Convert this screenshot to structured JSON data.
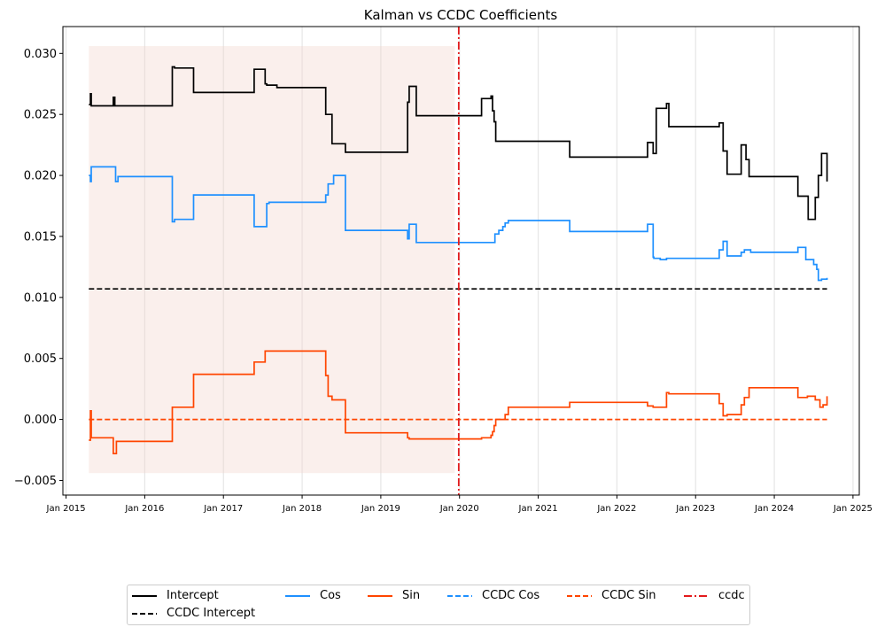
{
  "chart_data": {
    "type": "line",
    "title": "Kalman vs CCDC Coefficients",
    "xlabel": "",
    "ylabel": "",
    "xlim": [
      2014.96,
      2025.08
    ],
    "ylim": [
      -0.0062,
      0.0322
    ],
    "y_ticks": [
      -0.005,
      0.0,
      0.005,
      0.01,
      0.015,
      0.02,
      0.025,
      0.03
    ],
    "y_tick_labels": [
      "−0.005",
      "0.000",
      "0.005",
      "0.010",
      "0.015",
      "0.020",
      "0.025",
      "0.030"
    ],
    "x_ticks": [
      2015,
      2016,
      2017,
      2018,
      2019,
      2020,
      2021,
      2022,
      2023,
      2024,
      2025
    ],
    "x_tick_labels": [
      "Jan 2015",
      "Jan 2016",
      "Jan 2017",
      "Jan 2018",
      "Jan 2019",
      "Jan 2020",
      "Jan 2021",
      "Jan 2022",
      "Jan 2023",
      "Jan 2024",
      "Jan 2025"
    ],
    "grid": "vertical",
    "shaded_region": {
      "x": [
        2015.29,
        2019.94
      ],
      "y": [
        -0.0044,
        0.0306
      ],
      "color": "#f2d0c8"
    },
    "vline": {
      "name": "ccdc",
      "x": 2019.99,
      "color": "#e31a1c",
      "style": "dashdot"
    },
    "series": [
      {
        "name": "Intercept",
        "color": "#000000",
        "style": "solid",
        "step": true,
        "x": [
          2015.29,
          2015.31,
          2015.32,
          2015.33,
          2015.6,
          2015.62,
          2015.64,
          2016.35,
          2016.38,
          2016.62,
          2017.39,
          2017.53,
          2017.55,
          2017.68,
          2018.3,
          2018.38,
          2018.55,
          2019.34,
          2019.36,
          2019.45,
          2020.28,
          2020.4,
          2020.42,
          2020.44,
          2020.46,
          2021.4,
          2022.39,
          2022.46,
          2022.5,
          2022.63,
          2022.66,
          2023.3,
          2023.35,
          2023.4,
          2023.58,
          2023.64,
          2023.68,
          2024.3,
          2024.43,
          2024.52,
          2024.56,
          2024.6,
          2024.67
        ],
        "y": [
          0.0258,
          0.0267,
          0.0257,
          0.0257,
          0.0264,
          0.0257,
          0.0257,
          0.0289,
          0.0288,
          0.0268,
          0.0287,
          0.0275,
          0.0274,
          0.0272,
          0.025,
          0.0226,
          0.0219,
          0.026,
          0.0273,
          0.0249,
          0.0263,
          0.0265,
          0.0253,
          0.0244,
          0.0228,
          0.0215,
          0.0227,
          0.0218,
          0.0255,
          0.0259,
          0.024,
          0.0243,
          0.022,
          0.0201,
          0.0225,
          0.0213,
          0.0199,
          0.0183,
          0.0164,
          0.0182,
          0.02,
          0.0218,
          0.0195
        ]
      },
      {
        "name": "Cos",
        "color": "#1e90ff",
        "style": "solid",
        "step": true,
        "x": [
          2015.29,
          2015.31,
          2015.32,
          2015.35,
          2015.63,
          2015.66,
          2016.35,
          2016.38,
          2016.45,
          2016.62,
          2017.39,
          2017.55,
          2017.58,
          2018.3,
          2018.33,
          2018.4,
          2018.55,
          2019.34,
          2019.36,
          2019.45,
          2020.32,
          2020.4,
          2020.45,
          2020.5,
          2020.55,
          2020.58,
          2020.62,
          2021.4,
          2022.39,
          2022.46,
          2022.47,
          2022.55,
          2022.63,
          2023.3,
          2023.35,
          2023.4,
          2023.45,
          2023.58,
          2023.62,
          2023.7,
          2024.3,
          2024.4,
          2024.5,
          2024.54,
          2024.56,
          2024.6,
          2024.67
        ],
        "y": [
          0.02,
          0.0195,
          0.0207,
          0.0207,
          0.0195,
          0.0199,
          0.0162,
          0.0164,
          0.0164,
          0.0184,
          0.0158,
          0.0177,
          0.0178,
          0.0184,
          0.0193,
          0.02,
          0.0155,
          0.0148,
          0.016,
          0.0145,
          0.0145,
          0.0145,
          0.0152,
          0.0155,
          0.0158,
          0.0161,
          0.0163,
          0.0154,
          0.016,
          0.0133,
          0.0132,
          0.0131,
          0.0132,
          0.0139,
          0.0146,
          0.0134,
          0.0134,
          0.0137,
          0.0139,
          0.0137,
          0.0141,
          0.0131,
          0.0127,
          0.0123,
          0.0114,
          0.0115,
          0.0116
        ]
      },
      {
        "name": "Sin",
        "color": "#ff4500",
        "style": "solid",
        "step": true,
        "x": [
          2015.29,
          2015.31,
          2015.32,
          2015.33,
          2015.6,
          2015.64,
          2016.35,
          2016.38,
          2016.62,
          2017.39,
          2017.53,
          2017.55,
          2017.68,
          2018.3,
          2018.33,
          2018.38,
          2018.55,
          2019.34,
          2019.36,
          2019.45,
          2020.28,
          2020.4,
          2020.42,
          2020.44,
          2020.46,
          2020.58,
          2020.62,
          2021.4,
          2022.39,
          2022.46,
          2022.55,
          2022.63,
          2022.66,
          2023.3,
          2023.35,
          2023.4,
          2023.45,
          2023.58,
          2023.62,
          2023.68,
          2024.3,
          2024.42,
          2024.52,
          2024.58,
          2024.62,
          2024.67
        ],
        "y": [
          -0.0017,
          0.0007,
          -0.0015,
          -0.0015,
          -0.0028,
          -0.0018,
          0.001,
          0.001,
          0.0037,
          0.0047,
          0.0056,
          0.0056,
          0.0056,
          0.0036,
          0.0019,
          0.0016,
          -0.0011,
          -0.0015,
          -0.0016,
          -0.0016,
          -0.0015,
          -0.0013,
          -0.001,
          -0.0005,
          0.0,
          0.0004,
          0.001,
          0.0014,
          0.0011,
          0.001,
          0.001,
          0.0022,
          0.0021,
          0.0013,
          0.0003,
          0.0004,
          0.0004,
          0.0012,
          0.0018,
          0.0026,
          0.0018,
          0.0019,
          0.0016,
          0.001,
          0.0012,
          0.0019
        ]
      },
      {
        "name": "CCDC Intercept",
        "color": "#000000",
        "style": "dashed",
        "x": [
          2015.29,
          2024.67
        ],
        "y": [
          0.0107,
          0.0107
        ]
      },
      {
        "name": "CCDC Cos",
        "color": "#1e90ff",
        "style": "dashed",
        "x": [],
        "y": []
      },
      {
        "name": "CCDC Sin",
        "color": "#ff4500",
        "style": "dashed",
        "x": [
          2015.29,
          2024.67
        ],
        "y": [
          0.0,
          0.0
        ]
      }
    ],
    "legend": {
      "placement": "bottom-center",
      "entries": [
        {
          "label": "Intercept",
          "color": "#000000",
          "style": "solid"
        },
        {
          "label": "CCDC Intercept",
          "color": "#000000",
          "style": "dashed"
        },
        {
          "label": "Cos",
          "color": "#1e90ff",
          "style": "solid"
        },
        {
          "label": "Sin",
          "color": "#ff4500",
          "style": "solid"
        },
        {
          "label": "CCDC Cos",
          "color": "#1e90ff",
          "style": "dashed"
        },
        {
          "label": "CCDC Sin",
          "color": "#ff4500",
          "style": "dashed"
        },
        {
          "label": "ccdc",
          "color": "#e31a1c",
          "style": "dashdot"
        }
      ]
    }
  }
}
